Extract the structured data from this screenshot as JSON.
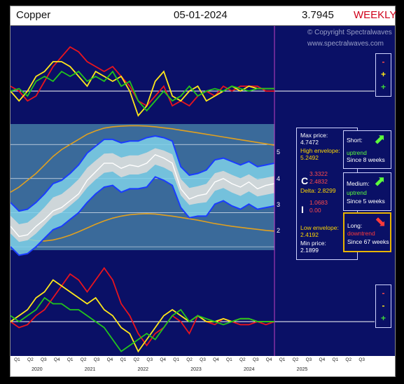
{
  "header": {
    "instrument": "Copper",
    "date": "05-01-2024",
    "price": "3.7945",
    "period": "WEEKLY"
  },
  "copyright": {
    "line1": "© Copyright Spectralwaves",
    "line2": "www.spectralwaves.com"
  },
  "top_legend": [
    "-",
    "+",
    "+"
  ],
  "bottom_legend": [
    "-",
    "-",
    "+"
  ],
  "info": {
    "max_price_label": "Max price:",
    "max_price": "4.7472",
    "high_env_label": "High envelope:",
    "high_env": "5.2492",
    "c_label": "C",
    "c_val1": "3.3322",
    "c_val2": "2.4832",
    "delta_label": "Delta: 2.8299",
    "i_label": "I",
    "i_val1": "1.0683",
    "i_val2": "0.00",
    "low_env_label": "Low envelope:",
    "low_env": "2.4192",
    "min_price_label": "Min price:",
    "min_price": "2.1899"
  },
  "trends": {
    "short": {
      "label": "Short:",
      "state": "uptrend",
      "since": "Since 8 weeks"
    },
    "medium": {
      "label": "Medium:",
      "state": "uptrend",
      "since": "Since 5 weeks"
    },
    "long": {
      "label": "Long:",
      "state": "downtrend",
      "since": "Since 67 weeks"
    }
  },
  "colors": {
    "background": "#0a1066",
    "red": "#e8141e",
    "yellow": "#ffe81a",
    "green": "#22c41c",
    "white": "#ffffff",
    "envelope": "#e0a020",
    "band": "#1a3cff",
    "fill": "#7fd0e8"
  },
  "chart_data": {
    "type": "line",
    "x_axis": {
      "quarters": [
        "Q1",
        "Q2",
        "Q3",
        "Q4",
        "Q1",
        "Q2",
        "Q3",
        "Q4",
        "Q1",
        "Q2",
        "Q3",
        "Q4",
        "Q1",
        "Q2",
        "Q3",
        "Q4",
        "Q1",
        "Q2",
        "Q3",
        "Q4",
        "Q1",
        "Q2",
        "Q3",
        "Q4",
        "Q1",
        "Q2",
        "Q3"
      ],
      "years": [
        "2020",
        "2021",
        "2022",
        "2023",
        "2024",
        "2025"
      ]
    },
    "price_panel": {
      "yticks": [
        2,
        3,
        4,
        5
      ],
      "ylim": [
        1.9,
        5.6
      ],
      "price": [
        2.6,
        2.3,
        2.35,
        2.6,
        2.8,
        3.05,
        3.15,
        3.35,
        3.55,
        3.95,
        4.2,
        4.45,
        4.45,
        4.3,
        4.4,
        4.35,
        4.45,
        4.7,
        4.6,
        4.45,
        3.7,
        3.4,
        3.5,
        3.55,
        3.9,
        4.0,
        3.85,
        3.75,
        3.9,
        3.7,
        3.8,
        3.85
      ],
      "upper_band": [
        3.3,
        3.05,
        3.1,
        3.3,
        3.55,
        3.85,
        3.95,
        4.15,
        4.4,
        4.75,
        4.95,
        5.15,
        5.15,
        5.05,
        5.1,
        5.1,
        5.2,
        5.25,
        5.2,
        5.1,
        4.35,
        4.1,
        4.15,
        4.25,
        4.55,
        4.6,
        4.5,
        4.4,
        4.5,
        4.35,
        4.4,
        4.45
      ],
      "lower_band": [
        2.0,
        1.75,
        1.8,
        2.0,
        2.25,
        2.5,
        2.6,
        2.8,
        3.0,
        3.3,
        3.55,
        3.75,
        3.8,
        3.6,
        3.7,
        3.7,
        3.75,
        4.05,
        3.95,
        3.8,
        3.15,
        2.85,
        2.9,
        2.9,
        3.25,
        3.35,
        3.2,
        3.1,
        3.25,
        3.1,
        3.15,
        3.2
      ],
      "high_envelope": [
        3.6,
        3.75,
        3.95,
        4.15,
        4.4,
        4.65,
        4.85,
        5.0,
        5.15,
        5.3,
        5.4,
        5.48,
        5.52,
        5.54,
        5.55,
        5.55,
        5.54,
        5.52,
        5.49,
        5.46,
        5.42,
        5.38,
        5.34,
        5.3,
        5.26,
        5.22,
        5.18,
        5.14,
        5.1,
        5.06,
        5.02,
        4.98
      ],
      "low_envelope": [
        2.45,
        2.3,
        2.22,
        2.18,
        2.17,
        2.2,
        2.26,
        2.34,
        2.44,
        2.55,
        2.66,
        2.76,
        2.84,
        2.9,
        2.94,
        2.96,
        2.97,
        2.96,
        2.93,
        2.9,
        2.86,
        2.82,
        2.78,
        2.73,
        2.68,
        2.64,
        2.6,
        2.57,
        2.54,
        2.51,
        2.48,
        2.46
      ]
    },
    "oscillator_panels": [
      {
        "name": "top",
        "red": [
          0.1,
          0.0,
          -0.2,
          -0.1,
          0.2,
          0.5,
          0.7,
          0.9,
          0.8,
          0.6,
          0.5,
          0.4,
          0.5,
          0.3,
          0.1,
          -0.2,
          -0.3,
          -0.1,
          0.1,
          -0.3,
          -0.2,
          -0.3,
          -0.1,
          0.0,
          -0.1,
          0.1,
          0.0,
          0.1,
          0.1,
          0.1,
          0.0,
          0.0
        ],
        "yellow": [
          0.0,
          -0.2,
          0.0,
          0.3,
          0.4,
          0.6,
          0.6,
          0.5,
          0.3,
          0.1,
          0.4,
          0.3,
          0.2,
          0.3,
          0.0,
          -0.5,
          -0.3,
          0.2,
          0.4,
          -0.1,
          -0.2,
          0.0,
          0.1,
          -0.2,
          -0.1,
          0.0,
          0.1,
          0.0,
          0.1,
          0.05,
          0.05,
          0.05
        ],
        "green": [
          0.0,
          0.05,
          -0.1,
          0.2,
          0.3,
          0.2,
          0.4,
          0.3,
          0.4,
          0.2,
          0.3,
          0.2,
          0.4,
          0.1,
          0.2,
          -0.2,
          -0.4,
          -0.2,
          0.0,
          -0.2,
          -0.1,
          0.1,
          -0.1,
          0.0,
          0.05,
          0.0,
          0.1,
          0.05,
          0.0,
          0.05,
          0.05,
          0.05
        ]
      },
      {
        "name": "bottom",
        "red": [
          0.0,
          -0.1,
          -0.05,
          0.1,
          0.2,
          0.4,
          0.6,
          0.8,
          0.7,
          0.5,
          0.7,
          0.9,
          0.7,
          0.3,
          0.1,
          -0.2,
          -0.4,
          -0.2,
          -0.1,
          0.1,
          0.0,
          -0.2,
          0.1,
          0.0,
          -0.05,
          0.05,
          0.0,
          -0.05,
          -0.05,
          0.0,
          -0.05,
          0.0
        ],
        "yellow": [
          0.0,
          0.1,
          0.2,
          0.4,
          0.5,
          0.7,
          0.6,
          0.5,
          0.4,
          0.3,
          0.4,
          0.2,
          0.1,
          -0.1,
          -0.2,
          -0.5,
          -0.3,
          -0.1,
          0.1,
          0.2,
          0.1,
          0.0,
          0.1,
          0.0,
          0.0,
          0.05,
          0.0,
          0.05,
          0.05,
          0.0,
          0.0,
          0.0
        ],
        "green": [
          0.1,
          0.0,
          0.1,
          0.2,
          0.4,
          0.3,
          0.3,
          0.2,
          0.2,
          0.1,
          0.0,
          -0.1,
          -0.3,
          -0.5,
          -0.4,
          -0.3,
          -0.2,
          -0.3,
          -0.1,
          0.1,
          0.2,
          0.0,
          0.1,
          0.05,
          0.0,
          -0.05,
          0.0,
          0.05,
          0.05,
          0.0,
          0.0,
          0.0
        ]
      }
    ]
  }
}
